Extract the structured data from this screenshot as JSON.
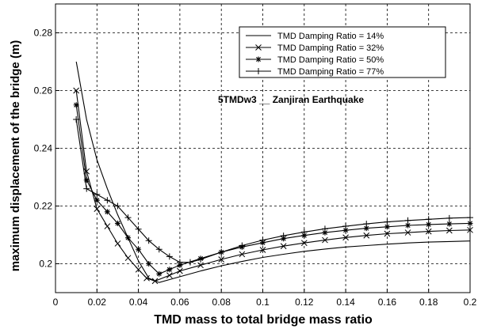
{
  "chart_data": {
    "type": "line",
    "title": "",
    "xlabel": "TMD  mass to total bridge mass  ratio",
    "ylabel": "maximum  displacement of the bridge   (m)",
    "xlim": [
      0,
      0.2
    ],
    "ylim": [
      0.19,
      0.29
    ],
    "xticks": [
      0,
      0.02,
      0.04,
      0.06,
      0.08,
      0.1,
      0.12,
      0.14,
      0.16,
      0.18,
      0.2
    ],
    "xtick_labels": [
      "0",
      "0.02",
      "0.04",
      "0.06",
      "0.08",
      "0.1",
      "0.12",
      "0.14",
      "0.16",
      "0.18",
      "0.2"
    ],
    "yticks": [
      0.2,
      0.22,
      0.24,
      0.26,
      0.28
    ],
    "ytick_labels": [
      "0.2",
      "0.22",
      "0.24",
      "0.26",
      "0.28"
    ],
    "grid": true,
    "grid_style": "dashed",
    "legend_position": "top-right",
    "annotation": "5TMDw3  __  Zanjiran   Earthquake",
    "series": [
      {
        "name": "TMD Damping Ratio = 14%",
        "marker": "none",
        "x": [
          0.01,
          0.015,
          0.02,
          0.025,
          0.03,
          0.035,
          0.04,
          0.045,
          0.05,
          0.06,
          0.07,
          0.08,
          0.09,
          0.1,
          0.11,
          0.12,
          0.13,
          0.14,
          0.15,
          0.16,
          0.17,
          0.18,
          0.19,
          0.2
        ],
        "y": [
          0.27,
          0.25,
          0.236,
          0.226,
          0.217,
          0.209,
          0.201,
          0.195,
          0.1935,
          0.1955,
          0.1975,
          0.1993,
          0.2008,
          0.2022,
          0.2033,
          0.2043,
          0.2051,
          0.2058,
          0.2063,
          0.2068,
          0.2072,
          0.2075,
          0.2077,
          0.2079
        ]
      },
      {
        "name": "TMD Damping Ratio = 32%",
        "marker": "x",
        "x": [
          0.01,
          0.015,
          0.02,
          0.025,
          0.03,
          0.035,
          0.04,
          0.044,
          0.048,
          0.055,
          0.06,
          0.07,
          0.08,
          0.09,
          0.1,
          0.11,
          0.12,
          0.13,
          0.14,
          0.15,
          0.16,
          0.17,
          0.18,
          0.19,
          0.2
        ],
        "y": [
          0.26,
          0.232,
          0.219,
          0.213,
          0.207,
          0.202,
          0.198,
          0.195,
          0.194,
          0.196,
          0.1975,
          0.1995,
          0.2015,
          0.2033,
          0.2048,
          0.2061,
          0.2072,
          0.2082,
          0.2091,
          0.2098,
          0.2104,
          0.2108,
          0.2112,
          0.2115,
          0.2117
        ]
      },
      {
        "name": "TMD Damping Ratio = 50%",
        "marker": "star",
        "x": [
          0.01,
          0.015,
          0.02,
          0.025,
          0.03,
          0.035,
          0.04,
          0.045,
          0.05,
          0.055,
          0.06,
          0.07,
          0.08,
          0.09,
          0.1,
          0.11,
          0.12,
          0.13,
          0.14,
          0.15,
          0.16,
          0.17,
          0.18,
          0.19,
          0.2
        ],
        "y": [
          0.255,
          0.229,
          0.222,
          0.218,
          0.214,
          0.209,
          0.205,
          0.2,
          0.1965,
          0.198,
          0.1995,
          0.2018,
          0.204,
          0.2058,
          0.2073,
          0.2087,
          0.2098,
          0.2108,
          0.2116,
          0.2123,
          0.2128,
          0.2133,
          0.2136,
          0.2138,
          0.214
        ]
      },
      {
        "name": "TMD Damping Ratio = 77%",
        "marker": "plus",
        "x": [
          0.01,
          0.015,
          0.02,
          0.025,
          0.03,
          0.035,
          0.04,
          0.045,
          0.05,
          0.055,
          0.06,
          0.065,
          0.07,
          0.08,
          0.09,
          0.1,
          0.11,
          0.12,
          0.13,
          0.14,
          0.15,
          0.16,
          0.17,
          0.18,
          0.19,
          0.2
        ],
        "y": [
          0.25,
          0.226,
          0.224,
          0.222,
          0.22,
          0.216,
          0.212,
          0.208,
          0.205,
          0.2025,
          0.2005,
          0.2005,
          0.2015,
          0.204,
          0.2063,
          0.2082,
          0.2097,
          0.211,
          0.2121,
          0.213,
          0.2138,
          0.2145,
          0.215,
          0.2154,
          0.2158,
          0.216
        ]
      }
    ]
  }
}
